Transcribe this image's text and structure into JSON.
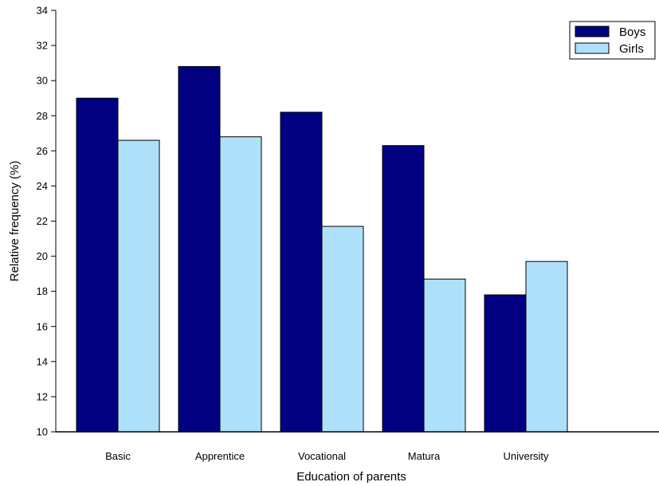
{
  "chart_data": {
    "type": "bar",
    "title": "",
    "xlabel": "Education of parents",
    "ylabel": "Relative frequency (%)",
    "categories": [
      "Basic",
      "Apprentice",
      "Vocational",
      "Matura",
      "University"
    ],
    "series": [
      {
        "name": "Boys",
        "color": "#000080",
        "values": [
          29.0,
          30.8,
          28.2,
          26.3,
          17.8
        ]
      },
      {
        "name": "Girls",
        "color": "#aee0fa",
        "values": [
          26.6,
          26.8,
          21.7,
          18.7,
          19.7
        ]
      }
    ],
    "ylim": [
      10,
      34
    ],
    "yticks": [
      "10",
      "12",
      "14",
      "16",
      "18",
      "20",
      "22",
      "24",
      "26",
      "28",
      "30",
      "32",
      "34"
    ],
    "grid": false,
    "legend_position": "top-right"
  }
}
